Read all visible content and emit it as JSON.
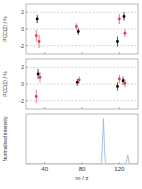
{
  "chart_data": [
    {
      "type": "scatter",
      "y_label": "PCC(2) / %",
      "xlim": [
        20,
        140
      ],
      "xticks": [
        40,
        80,
        120
      ],
      "ylim": [
        -3,
        3
      ],
      "yticks": [
        -2,
        0,
        2
      ],
      "grid": true,
      "tick_labels": "y",
      "marker": "circle",
      "series": [
        {
          "color": "#000000",
          "x": [
            32,
            76,
            118,
            125
          ],
          "values": [
            1.2,
            -0.3,
            -1.5,
            1.5
          ],
          "errors": [
            0.5,
            0.4,
            0.6,
            0.5
          ]
        },
        {
          "color": "#e0404a",
          "x": [
            31,
            34,
            74,
            120,
            126
          ],
          "values": [
            -0.8,
            -1.5,
            0.3,
            1.2,
            -0.5
          ],
          "errors": [
            0.7,
            0.8,
            0.4,
            0.6,
            0.5
          ]
        }
      ]
    },
    {
      "type": "scatter",
      "y_label": "PCC(1) / %",
      "xlim": [
        20,
        140
      ],
      "xticks": [
        40,
        80,
        120
      ],
      "ylim": [
        -3,
        3
      ],
      "yticks": [
        -2,
        0,
        2
      ],
      "grid": true,
      "tick_labels": "y",
      "marker": "circle",
      "series": [
        {
          "color": "#000000",
          "x": [
            33,
            75,
            118,
            124
          ],
          "values": [
            1.2,
            0.2,
            -0.3,
            0.4
          ],
          "errors": [
            0.6,
            0.4,
            0.5,
            0.5
          ]
        },
        {
          "color": "#e0404a",
          "x": [
            31,
            35,
            77,
            120,
            126
          ],
          "values": [
            -1.5,
            0.8,
            0.5,
            0.6,
            0.1
          ],
          "errors": [
            0.8,
            0.6,
            0.4,
            0.5,
            0.5
          ]
        }
      ]
    },
    {
      "type": "line",
      "x_label": "m / z",
      "y_label": "Normalised intensity",
      "xlim": [
        20,
        140
      ],
      "xticks": [
        40,
        80,
        120
      ],
      "ylim": [
        0,
        1.1
      ],
      "yticks": [],
      "tick_labels": "x",
      "x": [
        20,
        100,
        101,
        102,
        103,
        104,
        105,
        106,
        126,
        127,
        128,
        129,
        130,
        131,
        140
      ],
      "series": [
        {
          "color": "#8ab4e0",
          "values": [
            0,
            0,
            0.05,
            0.5,
            1.0,
            0.4,
            0.05,
            0,
            0,
            0.02,
            0.1,
            0.2,
            0.08,
            0,
            0
          ]
        }
      ]
    }
  ]
}
